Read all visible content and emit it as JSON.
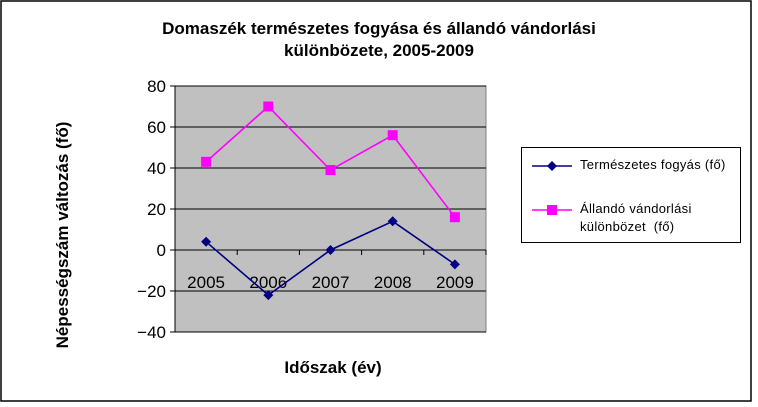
{
  "chart_data": {
    "type": "line",
    "title": "Domaszék természetes fogyása és állandó vándorlási különbözete, 2005-2009",
    "x_label": "Időszak (év)",
    "y_label": "Népességszám változás (fő)",
    "categories": [
      "2005",
      "2006",
      "2007",
      "2008",
      "2009"
    ],
    "series": [
      {
        "name": "Természetes fogyás (fő)",
        "color": "#000080",
        "marker": "diamond",
        "values": [
          4,
          -22,
          0,
          14,
          -7
        ]
      },
      {
        "name": "Állandó vándorlási különbözet  (fő)",
        "color": "#ff00ff",
        "marker": "square",
        "values": [
          43,
          70,
          39,
          56,
          16
        ]
      }
    ],
    "ylim": [
      -40,
      80
    ],
    "yticks": [
      {
        "value": -40,
        "label": "−40"
      },
      {
        "value": -20,
        "label": "−20"
      },
      0,
      20,
      40,
      60,
      80
    ],
    "grid": true,
    "legend": "right"
  }
}
